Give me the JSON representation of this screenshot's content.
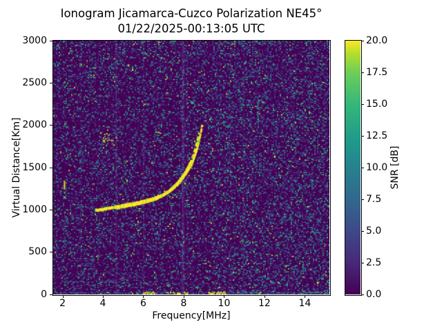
{
  "chart_data": {
    "type": "heatmap",
    "title": "Ionogram Jicamarca-Cuzco Polarization NE45°",
    "subtitle": "01/22/2025-00:13:05 UTC",
    "xlabel": "Frequency[MHz]",
    "ylabel": "Virtual Distance[Km]",
    "xlim": [
      1.52,
      15.2
    ],
    "ylim": [
      0,
      3000
    ],
    "xticks": [
      2,
      4,
      6,
      8,
      10,
      12,
      14
    ],
    "yticks": [
      0,
      500,
      1000,
      1500,
      2000,
      2500,
      3000
    ],
    "grid": false,
    "background_color": "#440154",
    "accent_color": "#fde725",
    "colorbar": {
      "label": "SNR [dB]",
      "colormap": "viridis",
      "vmin": 0.0,
      "vmax": 20.0,
      "ticks": [
        "0.0",
        "2.5",
        "5.0",
        "7.5",
        "10.0",
        "12.5",
        "15.0",
        "17.5",
        "20.0"
      ]
    },
    "series": [
      {
        "name": "o-mode-echo-trace",
        "description": "main bright F-layer echo trace, SNR ~20 dB",
        "points": [
          [
            3.62,
            993
          ],
          [
            3.8,
            1000
          ],
          [
            4.1,
            1012
          ],
          [
            4.5,
            1026
          ],
          [
            4.9,
            1040
          ],
          [
            5.3,
            1057
          ],
          [
            5.7,
            1077
          ],
          [
            6.1,
            1100
          ],
          [
            6.5,
            1128
          ],
          [
            6.85,
            1160
          ],
          [
            7.15,
            1200
          ],
          [
            7.45,
            1252
          ],
          [
            7.72,
            1315
          ],
          [
            7.97,
            1390
          ],
          [
            8.17,
            1462
          ],
          [
            8.37,
            1535
          ],
          [
            8.5,
            1615
          ],
          [
            8.62,
            1700
          ],
          [
            8.72,
            1790
          ],
          [
            8.8,
            1880
          ],
          [
            8.86,
            1950
          ],
          [
            8.9,
            2005
          ]
        ]
      },
      {
        "name": "x-mode-echo-trace",
        "description": "secondary thinner echo strand above main trace, dashed near top",
        "points": [
          [
            7.3,
            1235
          ],
          [
            7.55,
            1290
          ],
          [
            7.8,
            1355
          ],
          [
            8.02,
            1430
          ],
          [
            8.2,
            1505
          ],
          [
            8.35,
            1580
          ],
          [
            8.48,
            1660
          ],
          [
            8.58,
            1745
          ],
          [
            8.66,
            1830
          ],
          [
            8.73,
            1905
          ]
        ]
      },
      {
        "name": "second-hop-diffuse-echo",
        "description": "faint scattered echo cluster",
        "center": [
          4.25,
          1840
        ],
        "spread": [
          0.4,
          100
        ],
        "n_dots": 26
      }
    ],
    "annotations": [
      {
        "name": "narrowband-streak",
        "freq": 2.08,
        "dist_range": [
          1240,
          1345
        ]
      },
      {
        "name": "teal-streak-1",
        "freq": 11.66,
        "dist_range": [
          2050,
          2340
        ]
      },
      {
        "name": "teal-streak-2",
        "freq": 13.9,
        "dist_range": [
          245,
          440
        ]
      }
    ],
    "rfi_stripes": [
      {
        "freq": 2.9,
        "width": 2,
        "alpha": 0.1
      },
      {
        "freq": 4.65,
        "width": 3,
        "alpha": 0.16
      },
      {
        "freq": 6.0,
        "width": 2,
        "alpha": 0.12
      },
      {
        "freq": 7.95,
        "width": 4,
        "alpha": 0.22
      },
      {
        "freq": 8.15,
        "width": 2,
        "alpha": 0.1
      },
      {
        "freq": 10.3,
        "width": 2,
        "alpha": 0.09
      },
      {
        "freq": 10.95,
        "width": 2,
        "alpha": 0.11
      },
      {
        "freq": 13.3,
        "width": 2,
        "alpha": 0.08
      }
    ],
    "ground_clutter_freq_ranges": [
      [
        5.95,
        6.5
      ],
      [
        7.3,
        7.8
      ],
      [
        8.0,
        8.2
      ],
      [
        9.2,
        9.5
      ],
      [
        9.6,
        10.05
      ],
      [
        11.7,
        12.0
      ]
    ]
  }
}
